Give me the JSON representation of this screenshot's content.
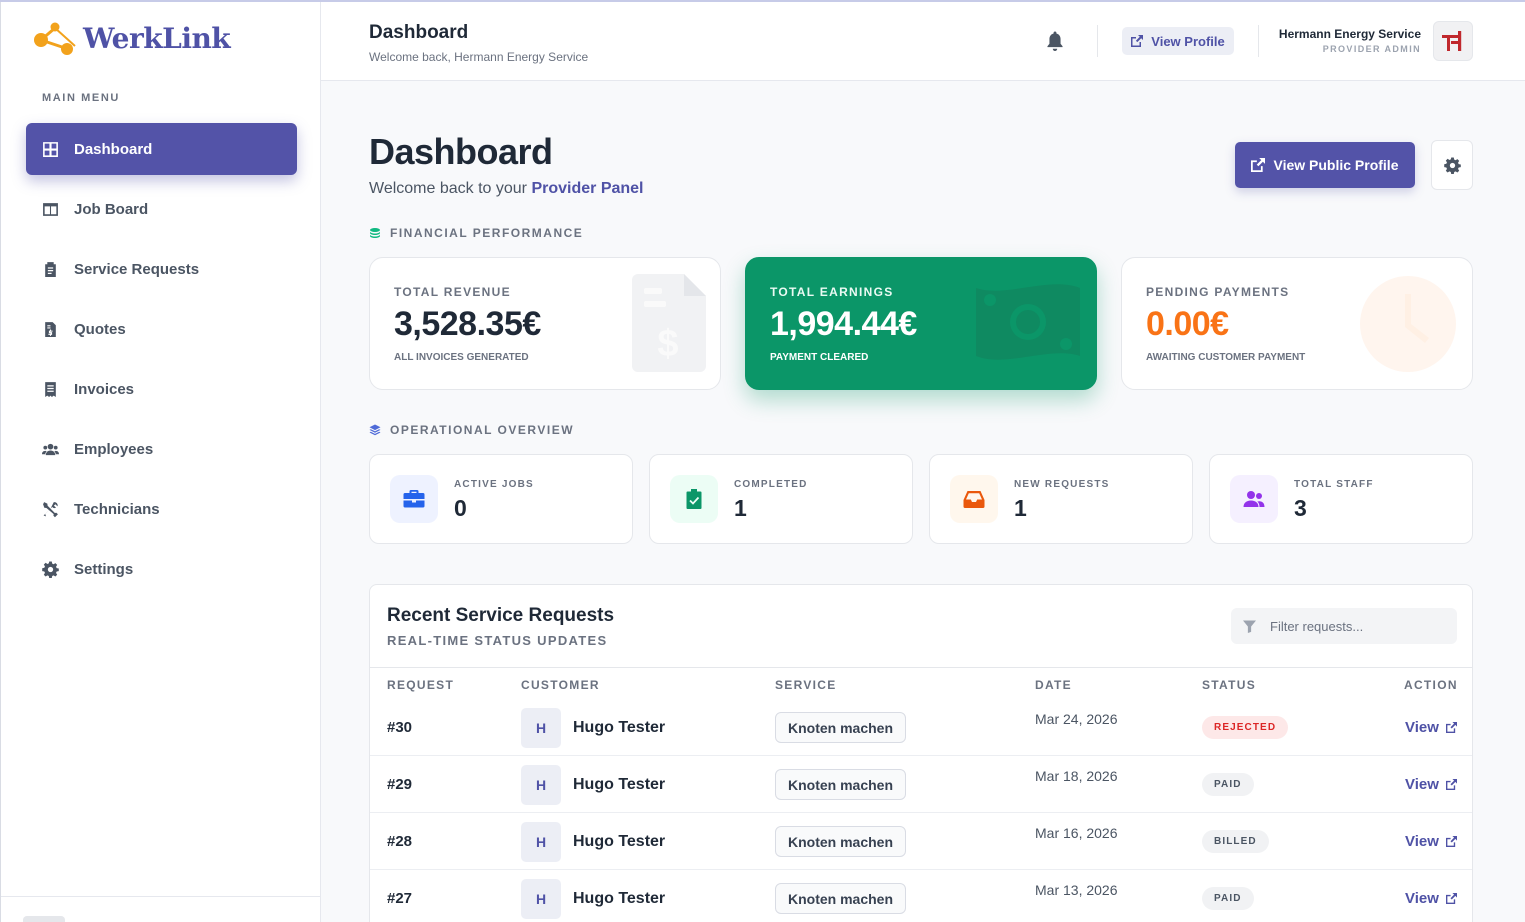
{
  "app": {
    "name": "WerkLink"
  },
  "sidebar": {
    "menu_title": "MAIN MENU",
    "items": [
      {
        "label": "Dashboard",
        "icon": "grid-icon",
        "active": true
      },
      {
        "label": "Job Board",
        "icon": "board-icon"
      },
      {
        "label": "Service Requests",
        "icon": "clipboard-icon"
      },
      {
        "label": "Quotes",
        "icon": "quote-file-icon"
      },
      {
        "label": "Invoices",
        "icon": "receipt-icon"
      },
      {
        "label": "Employees",
        "icon": "users-icon"
      },
      {
        "label": "Technicians",
        "icon": "tools-icon"
      },
      {
        "label": "Settings",
        "icon": "gear-icon"
      }
    ]
  },
  "header": {
    "title": "Dashboard",
    "subtitle": "Welcome back, Hermann Energy Service",
    "view_profile_label": "View Profile",
    "user_name": "Hermann Energy Service",
    "user_role": "PROVIDER ADMIN"
  },
  "main": {
    "title": "Dashboard",
    "subtitle_prefix": "Welcome back to your",
    "subtitle_highlight": "Provider Panel",
    "public_profile_label": "View Public Profile",
    "financial_label": "FINANCIAL PERFORMANCE",
    "financial_cards": [
      {
        "label": "TOTAL REVENUE",
        "value": "3,528.35€",
        "note": "ALL INVOICES GENERATED"
      },
      {
        "label": "TOTAL EARNINGS",
        "value": "1,994.44€",
        "note": "PAYMENT CLEARED"
      },
      {
        "label": "PENDING PAYMENTS",
        "value": "0.00€",
        "note": "AWAITING CUSTOMER PAYMENT"
      }
    ],
    "operational_label": "OPERATIONAL OVERVIEW",
    "operational_cards": [
      {
        "label": "ACTIVE JOBS",
        "value": "0",
        "icon": "briefcase-icon"
      },
      {
        "label": "COMPLETED",
        "value": "1",
        "icon": "clipboard-check-icon"
      },
      {
        "label": "NEW REQUESTS",
        "value": "1",
        "icon": "inbox-icon"
      },
      {
        "label": "TOTAL STAFF",
        "value": "3",
        "icon": "users-icon"
      }
    ],
    "requests": {
      "title": "Recent Service Requests",
      "subtitle": "REAL-TIME STATUS UPDATES",
      "filter_placeholder": "Filter requests...",
      "columns": [
        "REQUEST",
        "CUSTOMER",
        "SERVICE",
        "DATE",
        "STATUS",
        "ACTION"
      ],
      "rows": [
        {
          "id": "#30",
          "initial": "H",
          "customer": "Hugo Tester",
          "service": "Knoten machen",
          "date": "Mar 24, 2026",
          "status": "REJECTED",
          "action": "View"
        },
        {
          "id": "#29",
          "initial": "H",
          "customer": "Hugo Tester",
          "service": "Knoten machen",
          "date": "Mar 18, 2026",
          "status": "PAID",
          "action": "View"
        },
        {
          "id": "#28",
          "initial": "H",
          "customer": "Hugo Tester",
          "service": "Knoten machen",
          "date": "Mar 16, 2026",
          "status": "BILLED",
          "action": "View"
        },
        {
          "id": "#27",
          "initial": "H",
          "customer": "Hugo Tester",
          "service": "Knoten machen",
          "date": "Mar 13, 2026",
          "status": "PAID",
          "action": "View"
        }
      ]
    }
  },
  "colors": {
    "primary": "#5353a8",
    "earnings_green": "#0b9668",
    "pending_orange": "#f97316",
    "rejected_red": "#dc2626",
    "logo_orange": "#f2a21c"
  }
}
